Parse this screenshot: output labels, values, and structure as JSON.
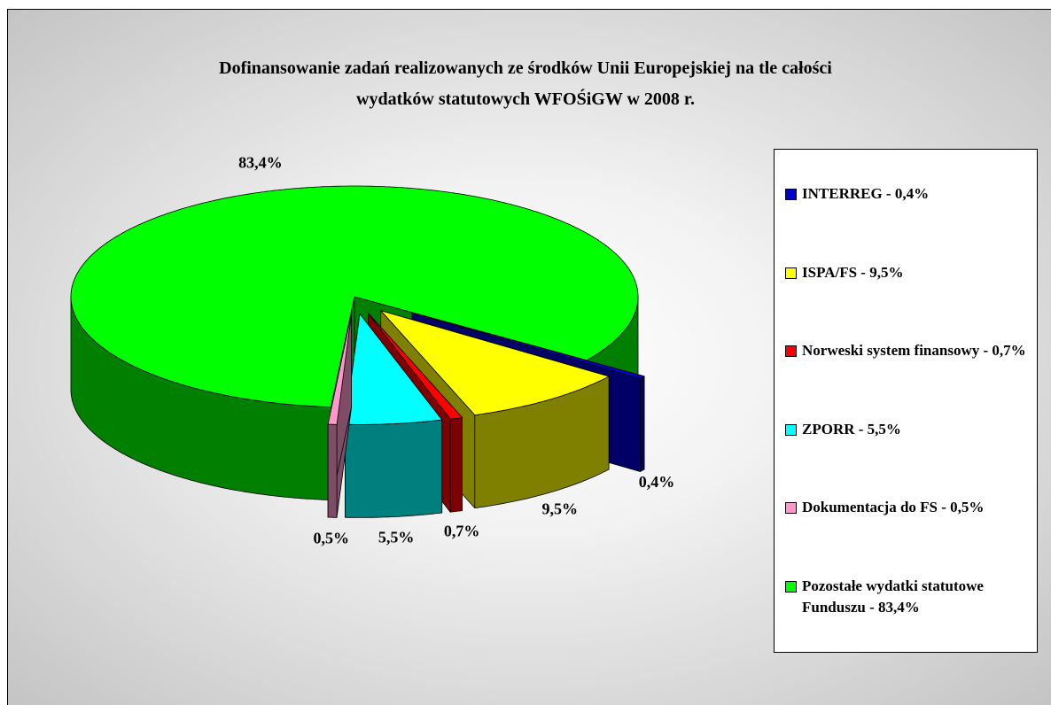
{
  "chart_data": {
    "type": "pie",
    "title": [
      "Dofinansowanie zadań realizowanych ze środków Unii Europejskiej na tle całości",
      "wydatków statutowych WFOŚiGW w 2008 r."
    ],
    "categories": [
      "INTERREG - 0,4%",
      "ISPA/FS - 9,5%",
      "Norweski system finansowy - 0,7%",
      "ZPORR - 5,5%",
      "Dokumentacja do FS - 0,5%",
      "Pozostałe wydatki statutowe Funduszu - 83,4%"
    ],
    "values": [
      0.4,
      9.5,
      0.7,
      5.5,
      0.5,
      83.4
    ],
    "value_labels": [
      "0,4%",
      "9,5%",
      "0,7%",
      "5,5%",
      "0,5%",
      "83,4%"
    ],
    "colors": [
      "#0000cc",
      "#ffff00",
      "#ff0000",
      "#00ffff",
      "#ff99cc",
      "#00ff00"
    ],
    "legend": "right"
  }
}
